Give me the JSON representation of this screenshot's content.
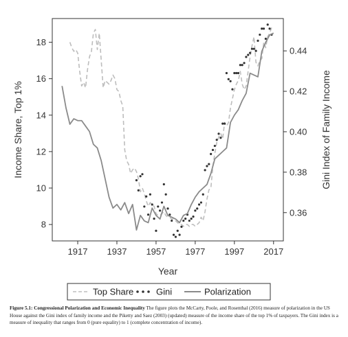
{
  "chart_data": {
    "type": "line",
    "xlabel": "Year",
    "ylabel_left": "Income Share, Top 1%",
    "ylabel_right": "Gini Index of Family Income",
    "xlim": [
      1904,
      2022
    ],
    "ylim_left": [
      7.1,
      19.3
    ],
    "ylim_right": [
      0.346,
      0.456
    ],
    "x_ticks": [
      1917,
      1937,
      1957,
      1977,
      1997,
      2017
    ],
    "x_tick_labels": [
      "1917",
      "1937",
      "1957",
      "1977",
      "1997",
      "2017"
    ],
    "y_left_ticks": [
      8,
      10,
      12,
      14,
      16,
      18
    ],
    "y_left_tick_labels": [
      "8",
      "10",
      "12",
      "14",
      "16",
      "18"
    ],
    "y_right_ticks": [
      0.36,
      0.38,
      0.4,
      0.42,
      0.44
    ],
    "y_right_tick_labels": [
      "0.36",
      "0.38",
      "0.40",
      "0.42",
      "0.44"
    ],
    "grid": false,
    "legend_position": "bottom",
    "series": [
      {
        "name": "Top Share",
        "axis": "left",
        "style": "dashed",
        "color": "#bdbdbd",
        "x": [
          1913,
          1914,
          1915,
          1916,
          1917,
          1918,
          1919,
          1920,
          1921,
          1922,
          1923,
          1924,
          1925,
          1926,
          1927,
          1928,
          1929,
          1930,
          1931,
          1932,
          1933,
          1934,
          1935,
          1936,
          1937,
          1938,
          1939,
          1940,
          1941,
          1942,
          1943,
          1944,
          1945,
          1946,
          1947,
          1948,
          1949,
          1950,
          1951,
          1952,
          1953,
          1954,
          1955,
          1956,
          1957,
          1958,
          1959,
          1960,
          1961,
          1962,
          1963,
          1964,
          1965,
          1966,
          1967,
          1968,
          1969,
          1970,
          1971,
          1972,
          1973,
          1974,
          1975,
          1976,
          1977,
          1978,
          1979,
          1980,
          1981,
          1982,
          1983,
          1984,
          1985,
          1986,
          1987,
          1988,
          1989,
          1990,
          1991,
          1992,
          1993,
          1994,
          1995,
          1996,
          1997,
          1998,
          1999,
          2000,
          2001,
          2002,
          2003,
          2004,
          2005,
          2006,
          2007,
          2008,
          2009,
          2010,
          2011,
          2012,
          2013,
          2014,
          2015,
          2016
        ],
        "values": [
          18.0,
          17.7,
          17.5,
          17.6,
          17.4,
          16.4,
          15.6,
          15.8,
          15.5,
          16.5,
          17.2,
          17.5,
          18.5,
          18.7,
          17.6,
          18.5,
          17.0,
          15.5,
          15.9,
          15.8,
          15.7,
          15.9,
          16.2,
          16.0,
          15.4,
          15.3,
          14.8,
          14.5,
          12.1,
          11.5,
          11.3,
          10.8,
          11.0,
          11.1,
          10.9,
          10.5,
          9.8,
          10.0,
          9.7,
          9.3,
          9.0,
          9.2,
          9.1,
          9.0,
          8.6,
          8.5,
          8.5,
          8.6,
          8.7,
          8.5,
          8.4,
          8.4,
          8.3,
          8.3,
          8.2,
          8.1,
          8.0,
          8.0,
          7.9,
          8.0,
          8.0,
          7.9,
          8.0,
          8.0,
          7.9,
          8.0,
          8.1,
          8.4,
          8.2,
          8.7,
          9.4,
          9.9,
          10.0,
          11.2,
          11.9,
          12.5,
          12.8,
          13.0,
          12.7,
          13.6,
          13.4,
          13.6,
          14.4,
          14.9,
          15.4,
          15.7,
          15.9,
          16.4,
          15.7,
          15.4,
          15.6,
          16.4,
          17.2,
          17.8,
          18.3,
          16.9,
          16.7,
          17.0,
          17.1,
          18.0,
          17.7,
          18.3,
          18.5,
          18.8
        ]
      },
      {
        "name": "Gini",
        "axis": "right",
        "style": "dotted",
        "color": "#333333",
        "x": [
          1947,
          1948,
          1949,
          1950,
          1951,
          1952,
          1953,
          1954,
          1955,
          1956,
          1957,
          1958,
          1959,
          1960,
          1961,
          1962,
          1963,
          1964,
          1965,
          1966,
          1967,
          1968,
          1969,
          1970,
          1971,
          1972,
          1973,
          1974,
          1975,
          1976,
          1977,
          1978,
          1979,
          1980,
          1981,
          1982,
          1983,
          1984,
          1985,
          1986,
          1987,
          1988,
          1989,
          1990,
          1991,
          1992,
          1993,
          1994,
          1995,
          1996,
          1997,
          1998,
          1999,
          2000,
          2001,
          2002,
          2003,
          2004,
          2005,
          2006,
          2007,
          2008,
          2009,
          2010,
          2011,
          2012,
          2013,
          2014,
          2015,
          2016
        ],
        "values": [
          0.376,
          0.371,
          0.378,
          0.379,
          0.363,
          0.368,
          0.359,
          0.369,
          0.364,
          0.357,
          0.351,
          0.363,
          0.361,
          0.365,
          0.374,
          0.369,
          0.362,
          0.359,
          0.356,
          0.349,
          0.348,
          0.351,
          0.349,
          0.353,
          0.356,
          0.357,
          0.359,
          0.356,
          0.357,
          0.358,
          0.361,
          0.362,
          0.364,
          0.365,
          0.369,
          0.381,
          0.383,
          0.384,
          0.389,
          0.391,
          0.393,
          0.396,
          0.399,
          0.397,
          0.404,
          0.404,
          0.429,
          0.426,
          0.425,
          0.421,
          0.429,
          0.429,
          0.429,
          0.433,
          0.433,
          0.434,
          0.437,
          0.438,
          0.439,
          0.441,
          0.441,
          0.44,
          0.445,
          0.448,
          0.451,
          0.451,
          0.446,
          0.453,
          0.451,
          0.448
        ]
      },
      {
        "name": "Polarization",
        "axis": "left",
        "style": "solid",
        "color": "#8a8a8a",
        "x": [
          1909,
          1911,
          1913,
          1915,
          1917,
          1919,
          1921,
          1923,
          1925,
          1927,
          1929,
          1931,
          1933,
          1935,
          1937,
          1939,
          1941,
          1943,
          1945,
          1947,
          1949,
          1951,
          1953,
          1955,
          1957,
          1959,
          1961,
          1963,
          1965,
          1967,
          1969,
          1971,
          1973,
          1975,
          1977,
          1979,
          1981,
          1983,
          1985,
          1987,
          1989,
          1991,
          1993,
          1995,
          1997,
          1999,
          2001,
          2003,
          2005,
          2007,
          2009,
          2011,
          2013,
          2015,
          2017
        ],
        "values": [
          15.6,
          14.4,
          13.5,
          13.8,
          13.7,
          13.7,
          13.4,
          13.1,
          12.4,
          12.2,
          11.5,
          10.5,
          9.5,
          8.9,
          9.1,
          8.8,
          9.2,
          8.6,
          9.1,
          7.7,
          8.5,
          8.2,
          8.1,
          8.9,
          8.5,
          8.3,
          9.0,
          8.5,
          8.4,
          8.3,
          8.1,
          8.5,
          8.6,
          9.1,
          9.5,
          9.8,
          10.0,
          10.2,
          10.8,
          11.6,
          11.8,
          12.0,
          12.2,
          13.6,
          14.0,
          14.3,
          14.8,
          15.2,
          16.3,
          16.2,
          16.1,
          17.5,
          18.0,
          18.4,
          18.5
        ]
      }
    ]
  },
  "caption": {
    "label": "Figure 5.1: Congressional Polarization and Economic Inequality",
    "text": " The figure plots the McCarty, Poole, and Rosenthal (2016) measure of polarization in the US House against the Gini index of family income and the Piketty and Saez (2003) (updated) measure of the income share of the top 1% of taxpayers. The Gini index is a measure of inequality that ranges from 0 (pure equality) to 1 (complete concentration of income)."
  }
}
